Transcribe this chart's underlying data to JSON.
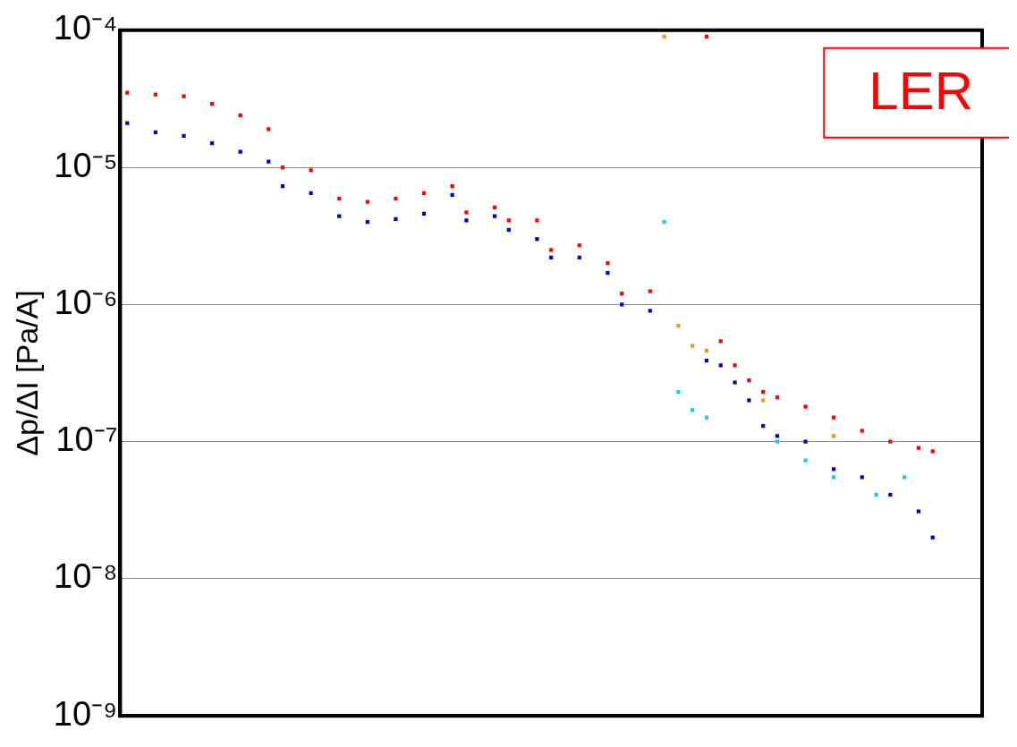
{
  "chart_data": {
    "type": "scatter",
    "ylabel": "Δp/ΔI [Pa/A]",
    "annotations": [
      "LER"
    ],
    "categories": [
      null,
      null,
      null,
      null,
      null,
      null,
      null,
      null,
      null,
      null,
      null,
      null,
      null,
      null,
      null,
      null,
      null,
      null,
      null,
      null,
      null,
      null,
      null,
      null,
      null,
      null,
      null,
      null,
      null,
      null,
      null,
      null,
      null,
      null,
      null,
      null,
      null,
      null,
      null,
      null,
      null,
      null,
      null,
      null,
      null,
      null,
      null,
      null,
      null,
      null,
      null,
      null,
      null,
      null,
      null,
      null,
      null,
      null,
      null,
      null,
      null
    ],
    "series": [
      {
        "color": "#ff0000",
        "values": [
          3.5e-05,
          null,
          3.4e-05,
          null,
          3.3e-05,
          null,
          2.9e-05,
          null,
          2.4e-05,
          null,
          1.9e-05,
          1e-05,
          null,
          9.5e-06,
          null,
          5.9e-06,
          null,
          5.6e-06,
          null,
          5.9e-06,
          null,
          6.5e-06,
          null,
          7.3e-06,
          4.7e-06,
          null,
          5.1e-06,
          4.1e-06,
          null,
          4.1e-06,
          2.5e-06,
          null,
          2.7e-06,
          null,
          2e-06,
          1.2e-06,
          null,
          1.25e-06,
          null,
          null,
          null,
          9e-05,
          5.4e-07,
          3.6e-07,
          2.8e-07,
          2.3e-07,
          2.1e-07,
          null,
          1.8e-07,
          null,
          1.5e-07,
          null,
          1.2e-07,
          null,
          1e-07,
          null,
          9e-08,
          8.5e-08,
          null,
          null,
          null
        ]
      },
      {
        "color": "#0000cc",
        "values": [
          2.1e-05,
          null,
          1.8e-05,
          null,
          1.7e-05,
          null,
          1.5e-05,
          null,
          1.3e-05,
          null,
          1.1e-05,
          7.3e-06,
          null,
          6.5e-06,
          null,
          4.4e-06,
          null,
          4e-06,
          null,
          4.2e-06,
          null,
          4.6e-06,
          null,
          6.3e-06,
          4.1e-06,
          null,
          4.4e-06,
          3.5e-06,
          null,
          3e-06,
          2.2e-06,
          null,
          2.2e-06,
          null,
          1.7e-06,
          1e-06,
          null,
          9e-07,
          null,
          null,
          null,
          3.9e-07,
          3.6e-07,
          2.7e-07,
          2e-07,
          1.3e-07,
          1.1e-07,
          null,
          1e-07,
          null,
          6.3e-08,
          null,
          5.5e-08,
          null,
          4.1e-08,
          null,
          3.1e-08,
          2e-08,
          null,
          null,
          null
        ]
      },
      {
        "color": "#f7941d",
        "values": [
          null,
          null,
          null,
          null,
          null,
          null,
          null,
          null,
          null,
          null,
          null,
          null,
          null,
          null,
          null,
          null,
          null,
          null,
          null,
          null,
          null,
          null,
          null,
          null,
          null,
          null,
          null,
          null,
          null,
          null,
          null,
          null,
          null,
          null,
          null,
          null,
          null,
          null,
          9e-05,
          7e-07,
          5e-07,
          4.6e-07,
          null,
          null,
          null,
          2e-07,
          null,
          null,
          null,
          null,
          1.1e-07,
          null,
          null,
          null,
          null,
          null,
          null,
          null,
          null,
          null,
          null
        ]
      },
      {
        "color": "#1ec8f0",
        "values": [
          null,
          null,
          null,
          null,
          null,
          null,
          null,
          null,
          null,
          null,
          null,
          null,
          null,
          null,
          null,
          null,
          null,
          null,
          null,
          null,
          null,
          null,
          null,
          null,
          null,
          null,
          null,
          null,
          null,
          null,
          null,
          null,
          null,
          null,
          null,
          null,
          null,
          null,
          4e-06,
          2.3e-07,
          1.7e-07,
          1.5e-07,
          null,
          null,
          null,
          null,
          1e-07,
          null,
          7.3e-08,
          null,
          5.5e-08,
          null,
          null,
          4.1e-08,
          null,
          5.5e-08,
          null,
          null,
          null,
          null,
          null
        ]
      }
    ],
    "log": "y",
    "ylim": [
      1e-09,
      0.0001
    ],
    "yticks": [
      {
        "value": 1e-09,
        "label": "10⁻⁹"
      },
      {
        "value": 1e-08,
        "label": "10⁻⁸"
      },
      {
        "value": 1e-07,
        "label": "10⁻⁷"
      },
      {
        "value": 1e-06,
        "label": "10⁻⁶"
      },
      {
        "value": 1e-05,
        "label": "10⁻⁵"
      },
      {
        "value": 0.0001,
        "label": "10⁻⁴"
      }
    ],
    "grid": "y",
    "tick_labels": "y",
    "marker": "square"
  }
}
